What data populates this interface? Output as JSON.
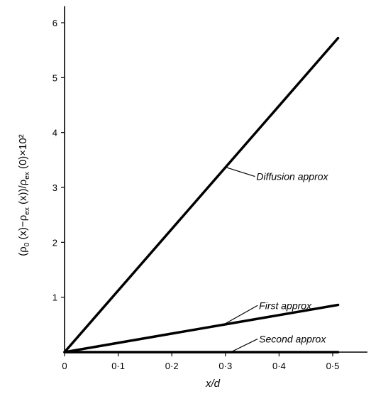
{
  "chart_data": {
    "type": "line",
    "title": "",
    "xlabel": "x/d",
    "ylabel_parts": {
      "p1": "(ρ",
      "s1": "0",
      "p2": " (x)−ρ",
      "s2": "ex",
      "p3": " (x))/ρ",
      "s3": "ex",
      "p4": " (0)×10²"
    },
    "xlim": [
      0,
      0.5
    ],
    "ylim": [
      0,
      6.3
    ],
    "x_ticks": [
      {
        "value": 0,
        "label": "0"
      },
      {
        "value": 0.1,
        "label": "0·1"
      },
      {
        "value": 0.2,
        "label": "0·2"
      },
      {
        "value": 0.3,
        "label": "0·3"
      },
      {
        "value": 0.4,
        "label": "0·4"
      },
      {
        "value": 0.5,
        "label": "0·5"
      }
    ],
    "y_ticks": [
      {
        "value": 1,
        "label": "1"
      },
      {
        "value": 2,
        "label": "2"
      },
      {
        "value": 3,
        "label": "3"
      },
      {
        "value": 4,
        "label": "4"
      },
      {
        "value": 5,
        "label": "5"
      },
      {
        "value": 6,
        "label": "6"
      }
    ],
    "series": [
      {
        "name": "Diffusion approx",
        "x": [
          0,
          0.51
        ],
        "y": [
          0,
          5.72
        ]
      },
      {
        "name": "First approx",
        "x": [
          0,
          0.51
        ],
        "y": [
          0,
          0.86
        ]
      },
      {
        "name": "Second approx",
        "x": [
          0,
          0.51
        ],
        "y": [
          0,
          0.0
        ]
      }
    ],
    "annotations": [
      {
        "text": "Diffusion approx",
        "series": "Diffusion approx",
        "point_x": 0.3,
        "point_y": 3.37,
        "label_x": 0.355,
        "label_y": 3.2
      },
      {
        "text": "First approx",
        "series": "First approx",
        "point_x": 0.3,
        "point_y": 0.52,
        "label_x": 0.36,
        "label_y": 0.85
      },
      {
        "text": "Second approx",
        "series": "Second approx",
        "point_x": 0.31,
        "point_y": 0.0,
        "label_x": 0.36,
        "label_y": 0.24
      }
    ],
    "grid": false
  }
}
